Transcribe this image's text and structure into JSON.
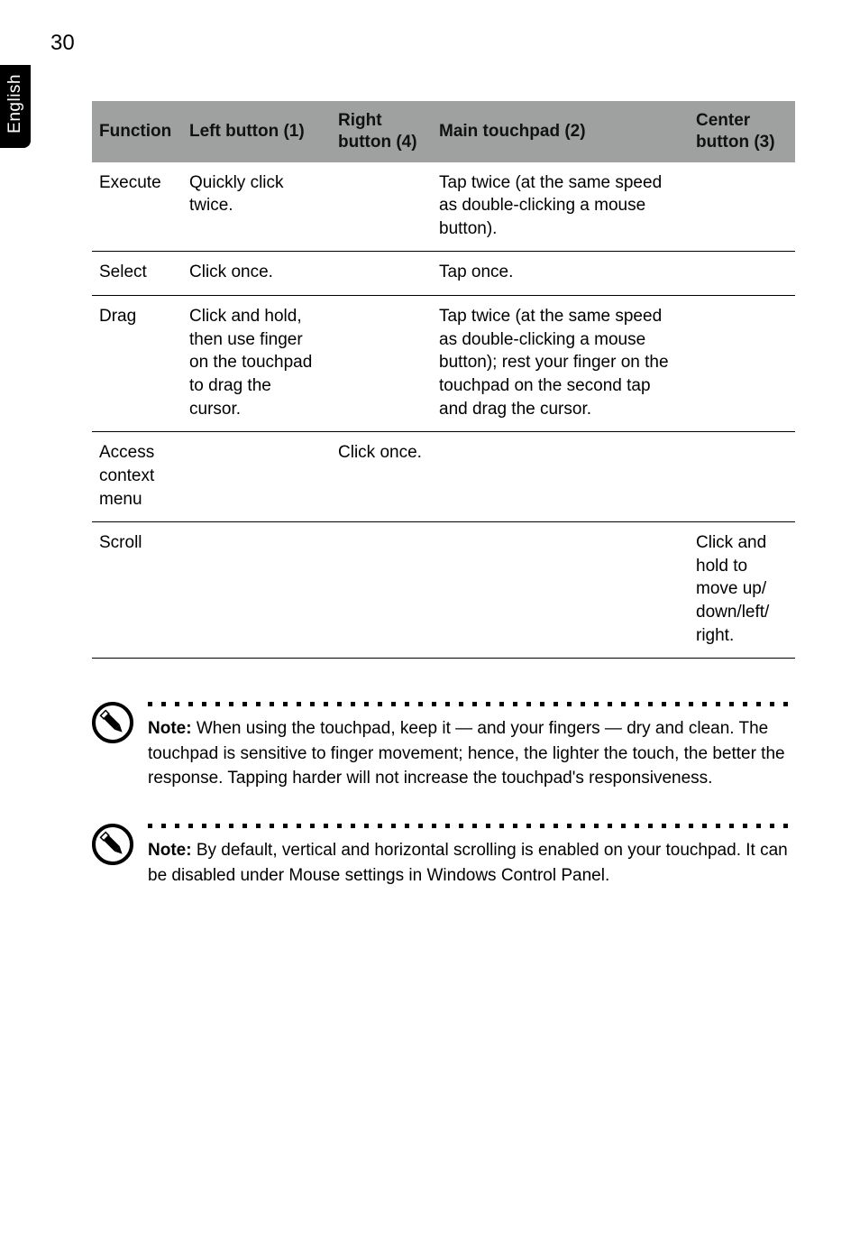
{
  "page_number": "30",
  "side_tab_label": "English",
  "table": {
    "header_bg": "#9fa0a0",
    "header_color": "#111111",
    "border_color": "#000000",
    "cell_font_size": 19,
    "columns": [
      {
        "key": "function",
        "label": "Function"
      },
      {
        "key": "left",
        "label": "Left button (1)"
      },
      {
        "key": "right",
        "label": "Right\nbutton (4)"
      },
      {
        "key": "main",
        "label": "Main touchpad (2)"
      },
      {
        "key": "center",
        "label": "Center\nbutton (3)"
      }
    ],
    "rows": [
      {
        "function": "Execute",
        "left": "Quickly click twice.",
        "right": "",
        "main": "Tap twice (at the same speed as double-clicking a mouse button).",
        "center": ""
      },
      {
        "function": "Select",
        "left": "Click once.",
        "right": "",
        "main": "Tap once.",
        "center": ""
      },
      {
        "function": "Drag",
        "left": "Click and hold, then use finger on the touchpad to drag the cursor.",
        "right": "",
        "main": "Tap twice (at the same speed as double-clicking a mouse button); rest your finger on the touchpad on the second tap and drag the cursor.",
        "center": ""
      },
      {
        "function": "Access context menu",
        "left": "",
        "right": "Click once.",
        "main": "",
        "center": ""
      },
      {
        "function": "Scroll",
        "left": "",
        "right": "",
        "main": "",
        "center": "Click and hold to move up/ down/left/ right."
      }
    ]
  },
  "notes": [
    {
      "bold": "Note: ",
      "text": "When using the touchpad, keep it — and your fingers — dry and clean. The touchpad is sensitive to finger movement; hence, the lighter the touch, the better the response. Tapping harder will not increase the touchpad's responsiveness."
    },
    {
      "bold": "Note: ",
      "text": "By default, vertical and horizontal scrolling is enabled on your touchpad. It can be disabled under Mouse settings in Windows Control Panel."
    }
  ],
  "icon": {
    "name": "pencil-note-icon",
    "stroke": "#000000",
    "fill_bg": "#ffffff"
  }
}
